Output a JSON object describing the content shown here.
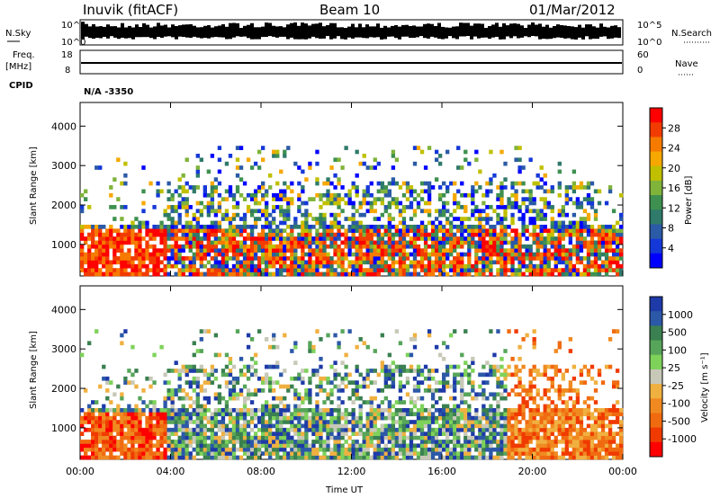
{
  "header": {
    "station": "Inuvik (fitACF)",
    "beam": "Beam 10",
    "date": "01/Mar/2012"
  },
  "strips": {
    "nsky_label": "N.Sky",
    "nsky_ticks": [
      "10^5",
      "10^0"
    ],
    "nsearch_label": "N.Search",
    "nsearch_ticks": [
      "10^5",
      "10^0"
    ],
    "freq_label_1": "Freq.",
    "freq_label_2": "[MHz]",
    "freq_ticks": [
      "18",
      "8"
    ],
    "nave_label": "Nave",
    "nave_ticks": [
      "60",
      "0"
    ],
    "cpid_label": "CPID",
    "cpid_value": "N/A -3350"
  },
  "chart_data": [
    {
      "type": "heatmap",
      "name": "power",
      "ylabel": "Slant Range [km]",
      "xlabel": "",
      "yticks": [
        "1000",
        "2000",
        "3000",
        "4000"
      ],
      "ylim": [
        200,
        4600
      ],
      "colorbar": {
        "label": "Power [dB]",
        "ticks": [
          "28",
          "24",
          "20",
          "16",
          "12",
          "8",
          "4"
        ],
        "colors": [
          "#ff0000",
          "#f23b00",
          "#f77a00",
          "#f6a800",
          "#c0c000",
          "#7fb33a",
          "#3e9050",
          "#2f7a6a",
          "#2b5aa6",
          "#1438d8",
          "#0000ff"
        ]
      }
    },
    {
      "type": "heatmap",
      "name": "velocity",
      "ylabel": "Slant Range [km]",
      "xlabel": "Time UT",
      "yticks": [
        "1000",
        "2000",
        "3000",
        "4000"
      ],
      "ylim": [
        200,
        4600
      ],
      "xticks": [
        "00:00",
        "04:00",
        "08:00",
        "12:00",
        "16:00",
        "20:00",
        "00:00"
      ],
      "colorbar": {
        "label": "Velocity [m s⁻¹]",
        "ticks": [
          "1000",
          "500",
          "100",
          "25",
          "-25",
          "-100",
          "-500",
          "-1000"
        ],
        "colors": [
          "#1e3aa8",
          "#2c58a8",
          "#3a8050",
          "#57a55a",
          "#7ed25a",
          "#c8c8b8",
          "#f0b040",
          "#f08a20",
          "#f06a10",
          "#f03a00",
          "#ff0000"
        ]
      }
    }
  ]
}
